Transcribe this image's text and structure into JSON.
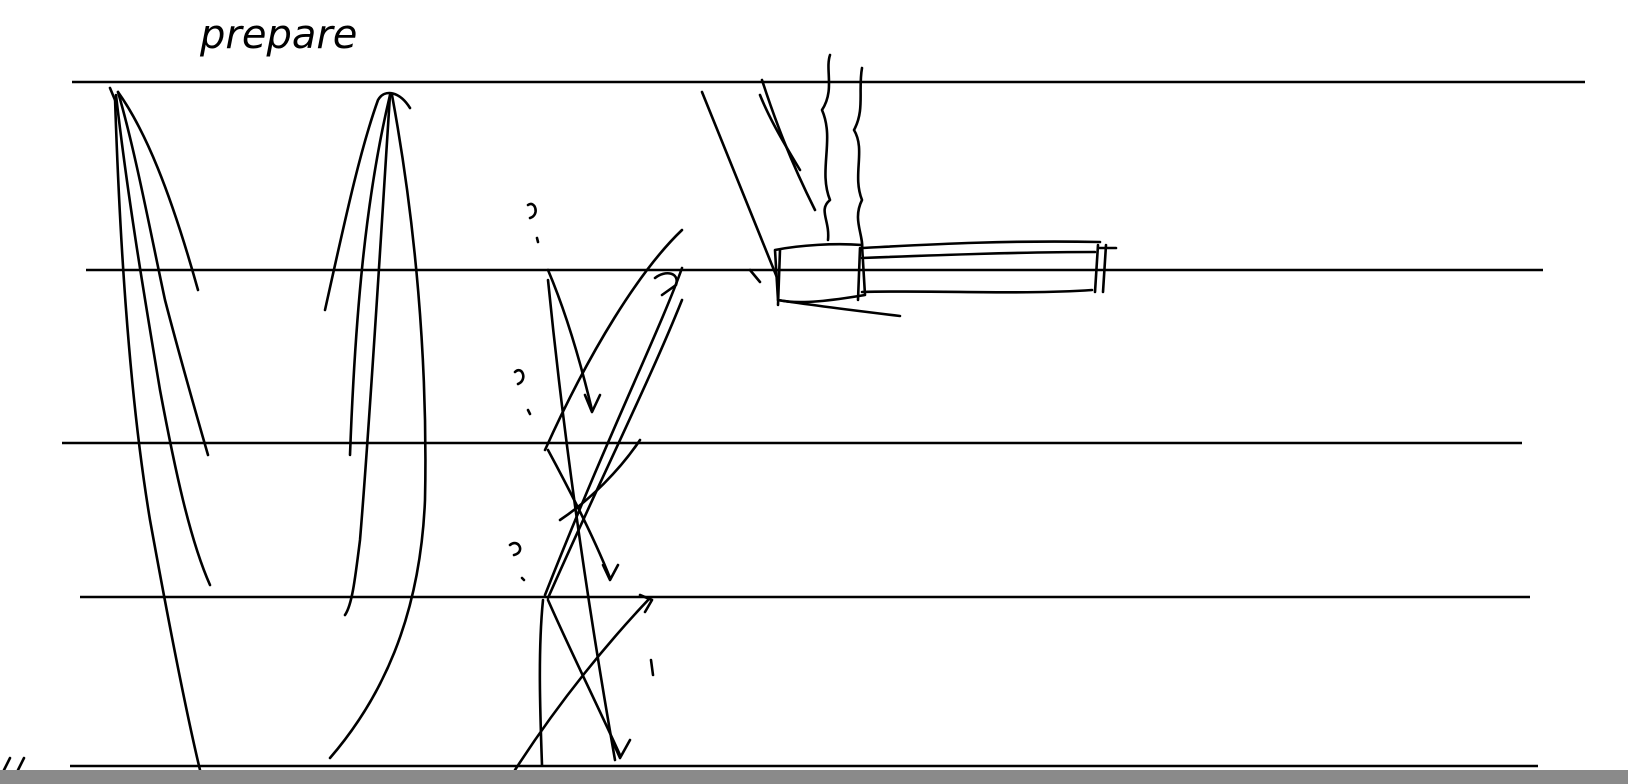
{
  "sketch": {
    "label": "prepare"
  }
}
